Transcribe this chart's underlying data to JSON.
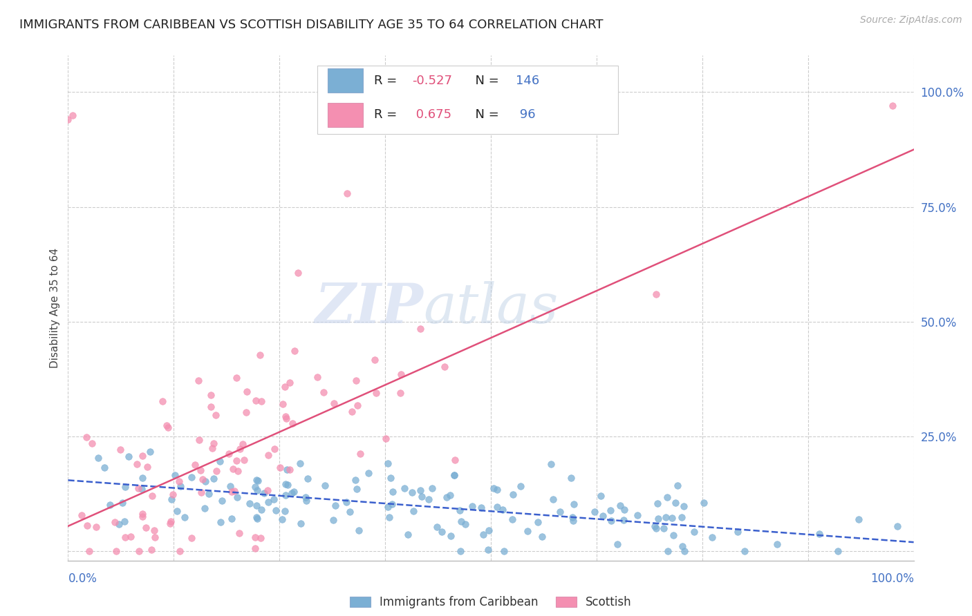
{
  "title": "IMMIGRANTS FROM CARIBBEAN VS SCOTTISH DISABILITY AGE 35 TO 64 CORRELATION CHART",
  "source": "Source: ZipAtlas.com",
  "ylabel": "Disability Age 35 to 64",
  "right_yticks": [
    "100.0%",
    "75.0%",
    "50.0%",
    "25.0%"
  ],
  "right_ytick_vals": [
    1.0,
    0.75,
    0.5,
    0.25
  ],
  "watermark_zip": "ZIP",
  "watermark_atlas": "atlas",
  "blue_color": "#7bafd4",
  "blue_edge": "#5a9abf",
  "pink_color": "#f48fb1",
  "pink_edge": "#e06090",
  "blue_line_color": "#3a5fcd",
  "pink_line_color": "#e0507a",
  "background_color": "#ffffff",
  "grid_color": "#cccccc",
  "title_color": "#222222",
  "source_color": "#aaaaaa",
  "axis_label_color": "#4472c4",
  "legend_text_color": "#222222",
  "legend_r_color": "#4472c4",
  "R_blue": -0.527,
  "N_blue": 146,
  "R_pink": 0.675,
  "N_pink": 96,
  "xlim": [
    0.0,
    1.0
  ],
  "ylim": [
    -0.02,
    1.08
  ],
  "blue_line_x": [
    0.0,
    1.0
  ],
  "blue_line_y": [
    0.155,
    0.02
  ],
  "pink_line_x": [
    0.0,
    1.0
  ],
  "pink_line_y": [
    0.055,
    0.875
  ]
}
